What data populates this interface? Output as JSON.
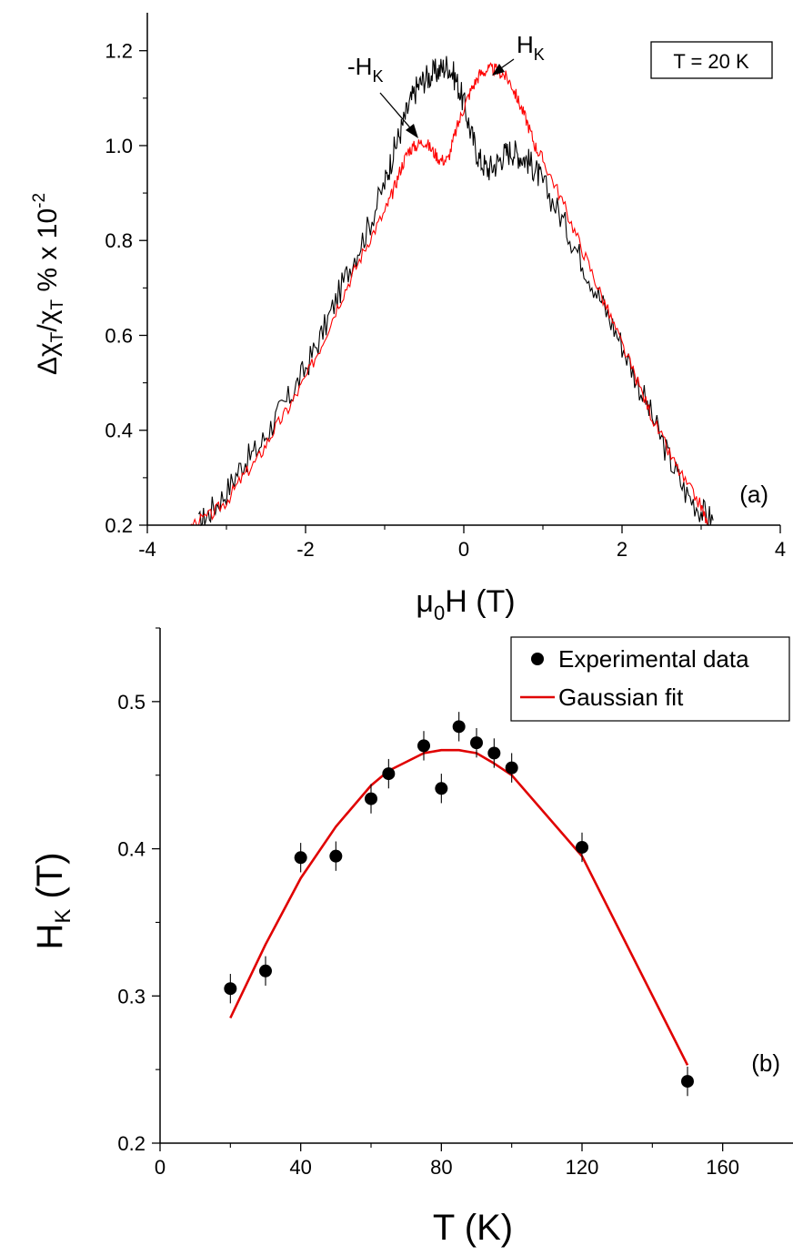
{
  "chart_data": [
    {
      "type": "line",
      "panel_label": "(a)",
      "annotation": "T = 20 K",
      "xlabel": {
        "main": "μ",
        "sub": "0",
        "rest": "H (T)"
      },
      "ylabel": {
        "delta": "Δχ",
        "sub1": "T",
        "slash": "/χ",
        "sub2": "T",
        "rest": " % x 10",
        "sup": "-2"
      },
      "xlim": [
        -4,
        4
      ],
      "ylim": [
        0.2,
        1.28
      ],
      "xticks": [
        "-4",
        "-2",
        "0",
        "2",
        "4"
      ],
      "yticks": [
        "0.2",
        "0.4",
        "0.6",
        "0.8",
        "1.0",
        "1.2"
      ],
      "grid": false,
      "arrow_labels": [
        {
          "main": "-H",
          "sub": "K"
        },
        {
          "main": "H",
          "sub": "K"
        }
      ],
      "series": [
        {
          "color": "#000000",
          "x": [
            -3.35,
            -3.2,
            -3.0,
            -2.8,
            -2.6,
            -2.4,
            -2.2,
            -2.0,
            -1.8,
            -1.6,
            -1.4,
            -1.2,
            -1.0,
            -0.9,
            -0.8,
            -0.7,
            -0.6,
            -0.5,
            -0.4,
            -0.3,
            -0.2,
            -0.1,
            0.0,
            0.1,
            0.2,
            0.3,
            0.4,
            0.5,
            0.6,
            0.7,
            0.8,
            0.9,
            1.0,
            1.2,
            1.4,
            1.6,
            1.8,
            2.0,
            2.2,
            2.4,
            2.6,
            2.8,
            3.0,
            3.15
          ],
          "y": [
            0.2,
            0.23,
            0.27,
            0.33,
            0.36,
            0.42,
            0.47,
            0.53,
            0.6,
            0.68,
            0.76,
            0.83,
            0.92,
            0.98,
            1.03,
            1.08,
            1.12,
            1.14,
            1.15,
            1.16,
            1.17,
            1.14,
            1.09,
            1.02,
            0.97,
            0.95,
            0.96,
            0.98,
            0.99,
            0.98,
            0.97,
            0.95,
            0.92,
            0.86,
            0.79,
            0.72,
            0.65,
            0.58,
            0.5,
            0.42,
            0.34,
            0.27,
            0.23,
            0.21
          ]
        },
        {
          "color": "#ff0000",
          "x": [
            -3.45,
            -3.2,
            -3.0,
            -2.8,
            -2.6,
            -2.4,
            -2.2,
            -2.0,
            -1.8,
            -1.6,
            -1.4,
            -1.2,
            -1.0,
            -0.9,
            -0.8,
            -0.7,
            -0.6,
            -0.5,
            -0.4,
            -0.3,
            -0.2,
            -0.1,
            0.0,
            0.1,
            0.2,
            0.3,
            0.4,
            0.5,
            0.6,
            0.7,
            0.8,
            0.9,
            1.0,
            1.2,
            1.4,
            1.6,
            1.8,
            2.0,
            2.2,
            2.4,
            2.6,
            2.8,
            3.0,
            3.08
          ],
          "y": [
            0.2,
            0.22,
            0.25,
            0.3,
            0.34,
            0.4,
            0.45,
            0.51,
            0.58,
            0.66,
            0.73,
            0.8,
            0.86,
            0.9,
            0.95,
            0.99,
            1.0,
            1.01,
            0.99,
            0.97,
            0.97,
            1.03,
            1.08,
            1.12,
            1.15,
            1.16,
            1.16,
            1.15,
            1.13,
            1.09,
            1.05,
            1.0,
            0.97,
            0.9,
            0.82,
            0.74,
            0.66,
            0.58,
            0.5,
            0.42,
            0.35,
            0.29,
            0.24,
            0.2
          ]
        }
      ]
    },
    {
      "type": "scatter",
      "panel_label": "(b)",
      "xlabel": "T (K)",
      "ylabel": {
        "main": "H",
        "sub": "K",
        "rest": " (T)"
      },
      "xlim": [
        0,
        180
      ],
      "ylim": [
        0.2,
        0.55
      ],
      "xticks": [
        "0",
        "40",
        "80",
        "120",
        "160"
      ],
      "yticks": [
        "0.2",
        "0.3",
        "0.4",
        "0.5"
      ],
      "grid": false,
      "legend": {
        "placement": "top-right",
        "entries": [
          "Experimental data",
          "Gaussian fit"
        ]
      },
      "series": [
        {
          "name": "Experimental data",
          "color": "#000000",
          "x": [
            20,
            30,
            40,
            50,
            60,
            65,
            75,
            80,
            85,
            90,
            95,
            100,
            120,
            150
          ],
          "y": [
            0.305,
            0.317,
            0.394,
            0.395,
            0.434,
            0.451,
            0.47,
            0.441,
            0.483,
            0.472,
            0.465,
            0.455,
            0.401,
            0.242
          ],
          "err": [
            0.01,
            0.01,
            0.01,
            0.01,
            0.01,
            0.01,
            0.01,
            0.01,
            0.01,
            0.01,
            0.01,
            0.01,
            0.01,
            0.01
          ]
        },
        {
          "name": "Gaussian fit",
          "color": "#e00000",
          "x": [
            20,
            30,
            40,
            50,
            60,
            65,
            75,
            80,
            85,
            90,
            95,
            100,
            120,
            150
          ],
          "y": [
            0.285,
            0.335,
            0.38,
            0.415,
            0.443,
            0.453,
            0.465,
            0.467,
            0.467,
            0.465,
            0.458,
            0.45,
            0.395,
            0.253
          ]
        }
      ]
    }
  ]
}
